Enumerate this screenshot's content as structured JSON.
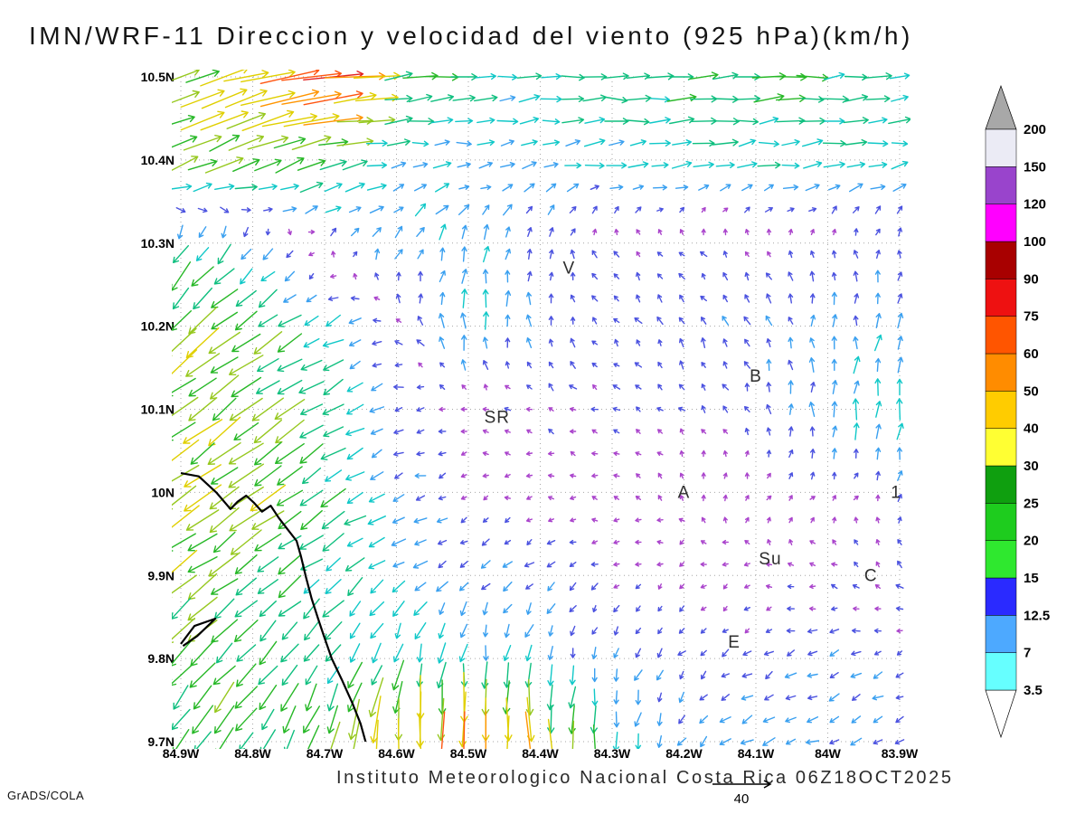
{
  "title": "IMN/WRF-11 Direccion y velocidad del viento (925 hPa)(km/h)",
  "footer": {
    "caption": "Instituto Meteorologico Nacional Costa Rica 06Z18OCT2025",
    "credit": "GrADS/COLA",
    "ref_vector_label": "40",
    "ref_vector_speed_kmh": 40
  },
  "axes": {
    "lat_ticks": [
      "10.5N",
      "10.4N",
      "10.3N",
      "10.2N",
      "10.1N",
      "10N",
      "9.9N",
      "9.8N",
      "9.7N"
    ],
    "lon_ticks": [
      "84.9W",
      "84.8W",
      "84.7W",
      "84.6W",
      "84.5W",
      "84.4W",
      "84.3W",
      "84.2W",
      "84.1W",
      "84W",
      "83.9W"
    ],
    "lat_range_n": [
      9.7,
      10.5
    ],
    "lon_range_w": [
      84.9,
      83.9
    ],
    "grid": "dotted"
  },
  "colorbar": {
    "tick_labels": [
      "3.5",
      "7",
      "12.5",
      "15",
      "20",
      "25",
      "30",
      "40",
      "50",
      "60",
      "75",
      "90",
      "100",
      "120",
      "150",
      "200"
    ],
    "band_colors_bottom_to_top": [
      "#66ffff",
      "#4da9ff",
      "#2a2aff",
      "#2fe82f",
      "#1ecc1e",
      "#0f9f0f",
      "#ffff33",
      "#ffcc00",
      "#ff8c00",
      "#ff5500",
      "#ee1111",
      "#a80000",
      "#ff00ff",
      "#9944cc",
      "#ebebf5"
    ],
    "below_min_color": "#ffffff",
    "above_max_color": "#a8a8a8",
    "units": "km/h"
  },
  "stations": [
    {
      "label": "V",
      "lon_w": 84.36,
      "lat_n": 10.27
    },
    {
      "label": "B",
      "lon_w": 84.1,
      "lat_n": 10.14
    },
    {
      "label": "SR",
      "lon_w": 84.46,
      "lat_n": 10.09
    },
    {
      "label": "A",
      "lon_w": 84.2,
      "lat_n": 10.0
    },
    {
      "label": "1",
      "lon_w": 83.905,
      "lat_n": 10.0
    },
    {
      "label": "Su",
      "lon_w": 84.08,
      "lat_n": 9.92
    },
    {
      "label": "C",
      "lon_w": 83.94,
      "lat_n": 9.9
    },
    {
      "label": "E",
      "lon_w": 84.13,
      "lat_n": 9.82
    }
  ],
  "arrow_palette": {
    "thresholds": [
      4,
      7,
      11,
      15,
      20,
      25,
      30,
      40,
      50,
      60
    ],
    "colors": [
      "#aa44cc",
      "#4b52e0",
      "#3aa0f0",
      "#10c8c8",
      "#0fbf7f",
      "#27b827",
      "#96c81e",
      "#e0cf00",
      "#ff9500",
      "#ff5510",
      "#e32222"
    ]
  },
  "map": {
    "coastline_fractions": [
      [
        [
          0,
          0.596
        ],
        [
          0.025,
          0.601
        ],
        [
          0.05,
          0.626
        ],
        [
          0.069,
          0.65
        ],
        [
          0.079,
          0.639
        ],
        [
          0.091,
          0.63
        ],
        [
          0.102,
          0.641
        ],
        [
          0.113,
          0.654
        ],
        [
          0.125,
          0.645
        ],
        [
          0.136,
          0.663
        ],
        [
          0.148,
          0.68
        ],
        [
          0.161,
          0.698
        ],
        [
          0.167,
          0.721
        ],
        [
          0.174,
          0.752
        ],
        [
          0.182,
          0.785
        ],
        [
          0.191,
          0.815
        ],
        [
          0.199,
          0.841
        ],
        [
          0.21,
          0.875
        ],
        [
          0.224,
          0.907
        ],
        [
          0.239,
          0.943
        ],
        [
          0.25,
          0.973
        ],
        [
          0.257,
          1.0
        ]
      ],
      [
        [
          0.0,
          0.853
        ],
        [
          0.019,
          0.826
        ],
        [
          0.048,
          0.815
        ],
        [
          0.023,
          0.841
        ],
        [
          0.003,
          0.856
        ]
      ]
    ]
  },
  "chart_data": {
    "type": "vector_field",
    "title": "IMN/WRF-11 Direccion y velocidad del viento (925 hPa)(km/h)",
    "units": "km/h",
    "level": "925 hPa",
    "valid_time": "06Z18OCT2025",
    "lon_range_deg_w": [
      84.9,
      83.9
    ],
    "lat_range_deg_n": [
      10.5,
      9.7
    ],
    "legend_levels_kmh": [
      3.5,
      7,
      12.5,
      15,
      20,
      25,
      30,
      40,
      50,
      60,
      75,
      90,
      100,
      120,
      150,
      200
    ],
    "coarse_grid": {
      "lons_w": [
        84.9,
        84.8,
        84.7,
        84.6,
        84.5,
        84.4,
        84.3,
        84.2,
        84.1,
        84.0,
        83.9
      ],
      "lats_n": [
        10.5,
        10.4,
        10.3,
        10.2,
        10.1,
        10.0,
        9.9,
        9.8,
        9.7
      ],
      "u_east_kmh": [
        [
          22,
          38,
          58,
          22,
          16,
          14,
          15,
          18,
          20,
          18,
          15
        ],
        [
          24,
          26,
          18,
          12,
          10,
          10,
          12,
          13,
          14,
          13,
          12
        ],
        [
          -8,
          -6,
          2,
          4,
          3,
          1,
          -2,
          -3,
          -3,
          -2,
          0
        ],
        [
          -20,
          -18,
          -11,
          -4,
          0,
          -2,
          -3,
          -3,
          -2,
          0,
          3
        ],
        [
          -22,
          -20,
          -14,
          -6,
          -3,
          -4,
          -4,
          -3,
          -2,
          0,
          2
        ],
        [
          -23,
          -22,
          -16,
          -8,
          -3,
          -3,
          -2,
          0,
          2,
          2,
          2
        ],
        [
          -20,
          -17,
          -13,
          -8,
          -6,
          -5,
          -4,
          -2,
          -2,
          -4,
          -3
        ],
        [
          -15,
          -13,
          -9,
          -5,
          -2,
          -2,
          -3,
          -4,
          -5,
          -6,
          -5
        ],
        [
          -13,
          -11,
          -7,
          -2,
          0,
          2,
          0,
          -4,
          -8,
          -8,
          -6
        ]
      ],
      "v_north_kmh": [
        [
          8,
          10,
          6,
          2,
          0,
          1,
          0,
          0,
          1,
          1,
          1
        ],
        [
          12,
          10,
          6,
          2,
          1,
          2,
          1,
          1,
          2,
          2,
          2
        ],
        [
          -14,
          -8,
          2,
          8,
          10,
          7,
          4,
          3,
          3,
          4,
          6
        ],
        [
          -16,
          -13,
          -6,
          3,
          12,
          6,
          4,
          5,
          6,
          8,
          9
        ],
        [
          -17,
          -15,
          -9,
          -2,
          0,
          2,
          2,
          3,
          5,
          10,
          15
        ],
        [
          -16,
          -15,
          -10,
          -3,
          -1,
          0,
          1,
          2,
          2,
          3,
          4
        ],
        [
          -14,
          -12,
          -10,
          -6,
          -5,
          -4,
          -2,
          -2,
          0,
          2,
          4
        ],
        [
          -16,
          -14,
          -13,
          -14,
          -12,
          -10,
          -6,
          -4,
          -3,
          -3,
          -2
        ],
        [
          -18,
          -16,
          -22,
          -38,
          -48,
          -32,
          -16,
          -6,
          -4,
          -3,
          -3
        ]
      ]
    }
  }
}
